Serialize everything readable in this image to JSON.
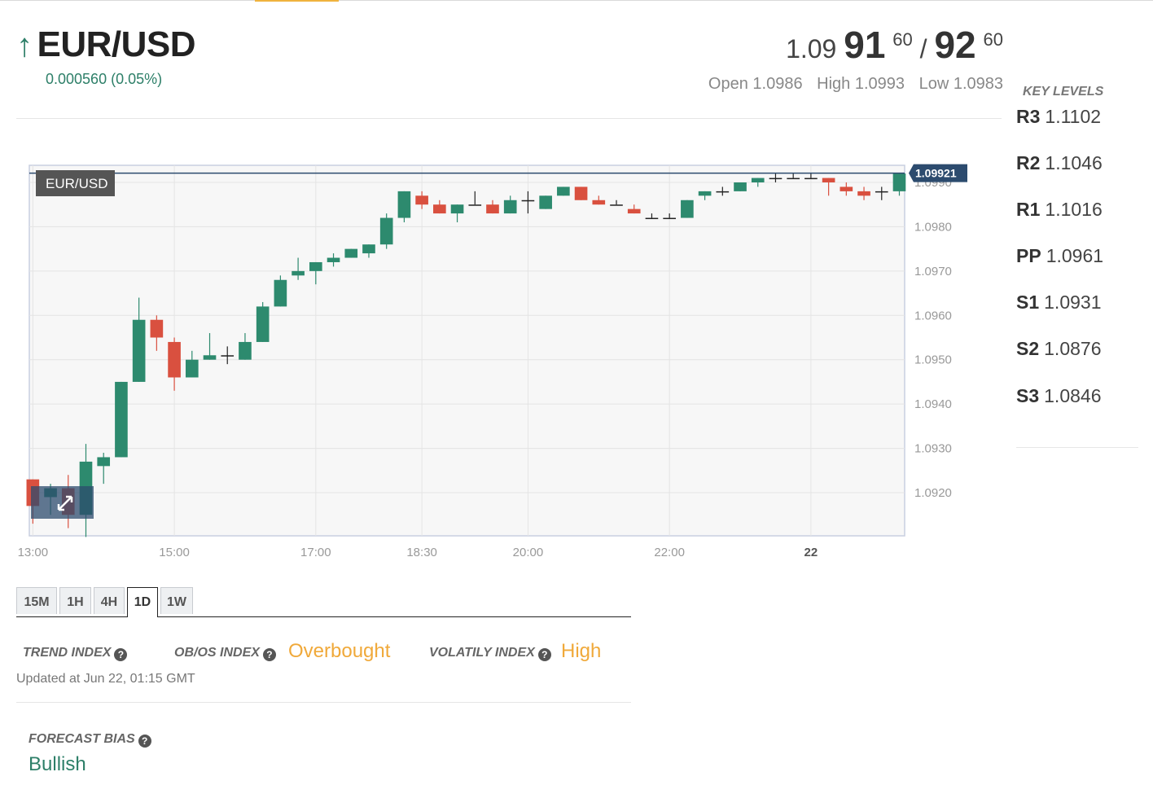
{
  "instrument": {
    "symbol": "EUR/USD",
    "change_text": "0.000560 (0.05%)",
    "direction_icon": "arrow-up-icon"
  },
  "quote": {
    "bid_prefix": "1.09",
    "bid_big": "91",
    "bid_sup": "60",
    "separator": "/",
    "ask_big": "92",
    "ask_sup": "60",
    "open": "Open 1.0986",
    "high": "High 1.0993",
    "low": "Low 1.0983"
  },
  "key_levels": {
    "title": "KEY LEVELS",
    "items": [
      {
        "label": "R3",
        "value": "1.1102"
      },
      {
        "label": "R2",
        "value": "1.1046"
      },
      {
        "label": "R1",
        "value": "1.1016"
      },
      {
        "label": "PP",
        "value": "1.0961"
      },
      {
        "label": "S1",
        "value": "1.0931"
      },
      {
        "label": "S2",
        "value": "1.0876"
      },
      {
        "label": "S3",
        "value": "1.0846"
      }
    ]
  },
  "timeframes": {
    "tabs": [
      "15M",
      "1H",
      "4H",
      "1D",
      "1W"
    ],
    "active": "1D"
  },
  "indicators": {
    "trend_label": "TREND INDEX",
    "obos_label": "OB/OS INDEX",
    "obos_value": "Overbought",
    "volatility_label": "VOLATILY INDEX",
    "volatility_value": "High",
    "updated": "Updated at Jun 22, 01:15 GMT",
    "forecast_label": "FORECAST BIAS",
    "forecast_value": "Bullish"
  },
  "colors": {
    "up": "#2d8a6e",
    "down": "#d9503f",
    "accent": "#f0a93a",
    "price_line": "#2c4b6e"
  },
  "chart_data": {
    "type": "candlestick",
    "title": "EUR/USD",
    "current_price_label": "1.09921",
    "current_price": 1.09921,
    "ylim": [
      1.0911,
      1.0995
    ],
    "y_ticks": [
      "1.0920",
      "1.0930",
      "1.0940",
      "1.0950",
      "1.0960",
      "1.0970",
      "1.0980",
      "1.0990"
    ],
    "x_ticks": [
      {
        "label": "13:00",
        "index": 0
      },
      {
        "label": "15:00",
        "index": 8
      },
      {
        "label": "17:00",
        "index": 16
      },
      {
        "label": "18:30",
        "index": 22
      },
      {
        "label": "20:00",
        "index": 28
      },
      {
        "label": "22:00",
        "index": 36
      },
      {
        "label": "22",
        "index": 44
      }
    ],
    "n_slots": 49.5,
    "candles": [
      {
        "i": 0,
        "o": 1.0923,
        "h": 1.0923,
        "l": 1.0913,
        "c": 1.0917
      },
      {
        "i": 1,
        "o": 1.0919,
        "h": 1.0922,
        "l": 1.0915,
        "c": 1.0921
      },
      {
        "i": 2,
        "o": 1.0921,
        "h": 1.0924,
        "l": 1.0912,
        "c": 1.0915
      },
      {
        "i": 3,
        "o": 1.0915,
        "h": 1.0931,
        "l": 1.091,
        "c": 1.0927
      },
      {
        "i": 4,
        "o": 1.0926,
        "h": 1.0929,
        "l": 1.0922,
        "c": 1.0928
      },
      {
        "i": 5,
        "o": 1.0928,
        "h": 1.0945,
        "l": 1.0928,
        "c": 1.0945
      },
      {
        "i": 6,
        "o": 1.0945,
        "h": 1.0964,
        "l": 1.0945,
        "c": 1.0959
      },
      {
        "i": 7,
        "o": 1.0959,
        "h": 1.096,
        "l": 1.0952,
        "c": 1.0955
      },
      {
        "i": 8,
        "o": 1.0954,
        "h": 1.0955,
        "l": 1.0943,
        "c": 1.0946
      },
      {
        "i": 9,
        "o": 1.0946,
        "h": 1.0952,
        "l": 1.0946,
        "c": 1.095
      },
      {
        "i": 10,
        "o": 1.095,
        "h": 1.0956,
        "l": 1.095,
        "c": 1.0951
      },
      {
        "i": 11,
        "o": 1.0951,
        "h": 1.0953,
        "l": 1.0949,
        "c": 1.0951
      },
      {
        "i": 12,
        "o": 1.095,
        "h": 1.0956,
        "l": 1.095,
        "c": 1.0954
      },
      {
        "i": 13,
        "o": 1.0954,
        "h": 1.0963,
        "l": 1.0954,
        "c": 1.0962
      },
      {
        "i": 14,
        "o": 1.0962,
        "h": 1.0969,
        "l": 1.0962,
        "c": 1.0968
      },
      {
        "i": 15,
        "o": 1.0969,
        "h": 1.0973,
        "l": 1.0968,
        "c": 1.097
      },
      {
        "i": 16,
        "o": 1.097,
        "h": 1.0972,
        "l": 1.0967,
        "c": 1.0972
      },
      {
        "i": 17,
        "o": 1.0972,
        "h": 1.0974,
        "l": 1.0971,
        "c": 1.0973
      },
      {
        "i": 18,
        "o": 1.0973,
        "h": 1.0975,
        "l": 1.0973,
        "c": 1.0975
      },
      {
        "i": 19,
        "o": 1.0974,
        "h": 1.0976,
        "l": 1.0973,
        "c": 1.0976
      },
      {
        "i": 20,
        "o": 1.0976,
        "h": 1.0983,
        "l": 1.0975,
        "c": 1.0982
      },
      {
        "i": 21,
        "o": 1.0982,
        "h": 1.0988,
        "l": 1.0981,
        "c": 1.0988
      },
      {
        "i": 22,
        "o": 1.0987,
        "h": 1.0988,
        "l": 1.0984,
        "c": 1.0985
      },
      {
        "i": 23,
        "o": 1.0985,
        "h": 1.0986,
        "l": 1.0983,
        "c": 1.0983
      },
      {
        "i": 24,
        "o": 1.0983,
        "h": 1.0985,
        "l": 1.0981,
        "c": 1.0985
      },
      {
        "i": 25,
        "o": 1.0985,
        "h": 1.0988,
        "l": 1.0985,
        "c": 1.0985
      },
      {
        "i": 26,
        "o": 1.0985,
        "h": 1.0986,
        "l": 1.0983,
        "c": 1.0983
      },
      {
        "i": 27,
        "o": 1.0983,
        "h": 1.0987,
        "l": 1.0983,
        "c": 1.0986
      },
      {
        "i": 28,
        "o": 1.0986,
        "h": 1.0988,
        "l": 1.0983,
        "c": 1.0986
      },
      {
        "i": 29,
        "o": 1.0984,
        "h": 1.0987,
        "l": 1.0984,
        "c": 1.0987
      },
      {
        "i": 30,
        "o": 1.0987,
        "h": 1.0989,
        "l": 1.0987,
        "c": 1.0989
      },
      {
        "i": 31,
        "o": 1.0989,
        "h": 1.0989,
        "l": 1.0986,
        "c": 1.0986
      },
      {
        "i": 32,
        "o": 1.0986,
        "h": 1.0987,
        "l": 1.0985,
        "c": 1.0985
      },
      {
        "i": 33,
        "o": 1.0985,
        "h": 1.0986,
        "l": 1.0985,
        "c": 1.0985
      },
      {
        "i": 34,
        "o": 1.0984,
        "h": 1.0985,
        "l": 1.0983,
        "c": 1.0983
      },
      {
        "i": 35,
        "o": 1.0982,
        "h": 1.0983,
        "l": 1.0982,
        "c": 1.0982
      },
      {
        "i": 36,
        "o": 1.0982,
        "h": 1.0983,
        "l": 1.0982,
        "c": 1.0982
      },
      {
        "i": 37,
        "o": 1.0982,
        "h": 1.0986,
        "l": 1.0982,
        "c": 1.0986
      },
      {
        "i": 38,
        "o": 1.0987,
        "h": 1.0988,
        "l": 1.0986,
        "c": 1.0988
      },
      {
        "i": 39,
        "o": 1.0988,
        "h": 1.0989,
        "l": 1.0987,
        "c": 1.0988
      },
      {
        "i": 40,
        "o": 1.0988,
        "h": 1.099,
        "l": 1.0988,
        "c": 1.099
      },
      {
        "i": 41,
        "o": 1.099,
        "h": 1.0991,
        "l": 1.0989,
        "c": 1.0991
      },
      {
        "i": 42,
        "o": 1.0991,
        "h": 1.0992,
        "l": 1.099,
        "c": 1.0991
      },
      {
        "i": 43,
        "o": 1.0991,
        "h": 1.0992,
        "l": 1.0991,
        "c": 1.0991
      },
      {
        "i": 44,
        "o": 1.0991,
        "h": 1.0992,
        "l": 1.0991,
        "c": 1.0991
      },
      {
        "i": 45,
        "o": 1.0991,
        "h": 1.0991,
        "l": 1.0987,
        "c": 1.099
      },
      {
        "i": 46,
        "o": 1.0989,
        "h": 1.099,
        "l": 1.0987,
        "c": 1.0988
      },
      {
        "i": 47,
        "o": 1.0988,
        "h": 1.0989,
        "l": 1.0986,
        "c": 1.0987
      },
      {
        "i": 48,
        "o": 1.0988,
        "h": 1.0989,
        "l": 1.0986,
        "c": 1.0988
      },
      {
        "i": 49,
        "o": 1.0988,
        "h": 1.0992,
        "l": 1.0987,
        "c": 1.0992
      },
      {
        "i": 50,
        "o": 1.0993,
        "h": 1.0993,
        "l": 1.0992,
        "c": 1.0992
      }
    ]
  }
}
